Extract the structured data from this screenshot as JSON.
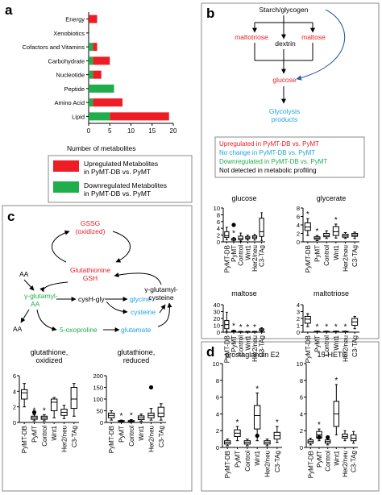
{
  "panels": {
    "a": {
      "letter": "a",
      "xlabel": "Number of metabolites",
      "legend": [
        {
          "label1": "Upregulated Metabolites",
          "label2": "in PyMT-DB vs. PyMT",
          "color": "#ee1c24"
        },
        {
          "label1": "Downregulated Metabolites",
          "label2": "in PyMT-DB vs. PyMT",
          "color": "#1fae4b"
        }
      ]
    },
    "b": {
      "letter": "b",
      "nodes": {
        "starch": "Starch/glycogen",
        "maltotriose": "maltotriose",
        "dextrin": "dextrin",
        "maltose": "maltose",
        "glucose": "glucose",
        "glycolysis1": "Glycolysis",
        "glycolysis2": "products"
      },
      "legend": [
        {
          "text": "Upregulated in PyMT-DB vs. PyMT",
          "color": "#ee1c24"
        },
        {
          "text": "No change in PyMT-DB vs. PyMT",
          "color": "#1ea5dc"
        },
        {
          "text": "Downregulated in PyMT-DB vs. PyMT",
          "color": "#1fae4b"
        },
        {
          "text": "Not detected in metabolic profiling",
          "color": "#000000"
        }
      ]
    },
    "c": {
      "letter": "c",
      "nodes": {
        "gssg1": "GSSG",
        "gssg2": "(oxidized)",
        "gsh1": "Glutathionine",
        "gsh2": "GSH",
        "aa1": "AA",
        "aa2": "AA",
        "ygaa1": "γ-glutamyl-",
        "ygaa2": "AA",
        "cysgly": "cysH-gly",
        "glycine": "glycine",
        "cysteine": "cysteine",
        "ygc1": "γ-glutamyl-",
        "ygc2": "cysteine",
        "oxoproline": "5-oxoproline",
        "glutamate": "glutamate"
      }
    },
    "d": {
      "letter": "d"
    }
  },
  "colors": {
    "red": "#ee1c24",
    "green": "#1fae4b",
    "blue": "#1ea5dc",
    "arrow_blue": "#2a5caa"
  },
  "chart_data": [
    {
      "type": "bar",
      "panel": "a",
      "categories": [
        "Energy",
        "Xenobiotics",
        "Cofactors and Vitamins",
        "Carbohydrate",
        "Nucleotide",
        "Peptide",
        "Amino Acid",
        "Lipid"
      ],
      "series": [
        {
          "name": "Downregulated Metabolites in PyMT-DB vs. PyMT",
          "values": [
            0,
            0,
            1,
            1,
            1,
            6,
            1,
            5
          ]
        },
        {
          "name": "Upregulated Metabolites in PyMT-DB vs. PyMT",
          "values": [
            2,
            0,
            1,
            4,
            2,
            0,
            7,
            14
          ]
        }
      ],
      "stacked": true,
      "orientation": "horizontal",
      "xlim": [
        0,
        20
      ],
      "xticks": [
        0,
        5,
        10,
        15,
        20
      ],
      "xlabel": "Number of metabolites"
    },
    {
      "type": "box",
      "panel": "b",
      "title": "glucose",
      "ylim": [
        0,
        10
      ],
      "yticks": [
        0,
        2,
        4,
        6,
        8,
        10
      ],
      "categories": [
        "PyMT-DB",
        "PyMT",
        "Control",
        "Wnt1",
        "Her2/neu",
        "C3-TAg"
      ],
      "boxes": [
        [
          0.6,
          1.3,
          1.8,
          3.0,
          4.3
        ],
        [
          0.3,
          0.5,
          0.8,
          1.0,
          1.3
        ],
        [
          0.2,
          0.6,
          1.0,
          1.7,
          2.6
        ],
        [
          0.5,
          0.9,
          1.2,
          1.6,
          2.0
        ],
        [
          0.5,
          1.0,
          1.4,
          1.8,
          2.2
        ],
        [
          0.4,
          1.6,
          3.0,
          7.0,
          8.6
        ]
      ],
      "markers": [
        {
          "index": 1,
          "type": "star"
        }
      ],
      "outliers": [
        {
          "index": 1,
          "value": 5.0
        }
      ]
    },
    {
      "type": "box",
      "panel": "b",
      "title": "glycerate",
      "ylim": [
        0,
        8
      ],
      "yticks": [
        0,
        2,
        4,
        6,
        8
      ],
      "categories": [
        "PyMT-DB",
        "PyMT",
        "Control",
        "Wnt1",
        "Her2/neu",
        "C3-TAg"
      ],
      "boxes": [
        [
          1.5,
          2.7,
          3.5,
          4.5,
          5.5
        ],
        [
          0.3,
          0.6,
          0.9,
          1.2,
          1.5
        ],
        [
          0.8,
          1.2,
          1.5,
          2.0,
          2.6
        ],
        [
          0.9,
          1.5,
          2.4,
          3.6,
          4.2
        ],
        [
          0.8,
          1.1,
          1.4,
          1.8,
          2.2
        ],
        [
          0.8,
          1.3,
          1.6,
          2.0,
          2.3
        ]
      ],
      "markers": [
        {
          "index": 0,
          "type": "star"
        },
        {
          "index": 1,
          "type": "star"
        },
        {
          "index": 3,
          "type": "star"
        }
      ]
    },
    {
      "type": "box",
      "panel": "b",
      "title": "maltose",
      "ylim": [
        0,
        40
      ],
      "yticks": [
        0,
        10,
        20,
        30,
        40
      ],
      "categories": [
        "PyMT-DB",
        "PyMT",
        "Control",
        "Wnt1",
        "Her2/neu",
        "C3-TAg"
      ],
      "boxes": [
        [
          1,
          5,
          11,
          17,
          29
        ],
        [
          0.3,
          0.8,
          1.5,
          2.0,
          3.0
        ],
        [
          0.2,
          0.5,
          0.8,
          1.0,
          1.2
        ],
        [
          0.2,
          0.5,
          0.8,
          1.0,
          1.2
        ],
        [
          0.2,
          0.5,
          0.8,
          1.0,
          1.2
        ],
        [
          1,
          2,
          3.5,
          5,
          6.5
        ]
      ],
      "markers": [
        {
          "index": 1,
          "type": "star"
        },
        {
          "index": 2,
          "type": "star"
        },
        {
          "index": 3,
          "type": "star"
        },
        {
          "index": 4,
          "type": "star"
        }
      ]
    },
    {
      "type": "box",
      "panel": "b",
      "title": "maltotriose",
      "ylim": [
        0,
        4
      ],
      "yticks": [
        0,
        1,
        2,
        3,
        4
      ],
      "categories": [
        "PyMT-DB",
        "PyMT",
        "Control",
        "Wnt1",
        "Her2/neu",
        "C3-TAg"
      ],
      "boxes": [
        [
          0.8,
          1.3,
          1.9,
          2.3,
          2.7
        ],
        [
          0.02,
          0.05,
          0.08,
          0.12,
          0.15
        ],
        [
          0.02,
          0.05,
          0.08,
          0.12,
          0.15
        ],
        [
          0.02,
          0.05,
          0.08,
          0.12,
          0.15
        ],
        [
          0.02,
          0.05,
          0.08,
          0.12,
          0.15
        ],
        [
          0.5,
          1.0,
          1.5,
          2.0,
          2.3
        ]
      ],
      "markers": [
        {
          "index": 1,
          "type": "star"
        },
        {
          "index": 2,
          "type": "star"
        },
        {
          "index": 3,
          "type": "star"
        },
        {
          "index": 4,
          "type": "star"
        }
      ]
    },
    {
      "type": "box",
      "panel": "c",
      "title": "glutathione,",
      "title2": "oxidized",
      "ylim": [
        0,
        6
      ],
      "yticks": [
        0,
        2,
        4,
        6
      ],
      "categories": [
        "PyMT-DB",
        "PyMT",
        "Control",
        "Wnt1",
        "Her2/neu",
        "C3-TAg"
      ],
      "boxes": [
        [
          2.0,
          3.0,
          3.8,
          4.2,
          5.0
        ],
        [
          0.2,
          0.4,
          0.6,
          0.8,
          1.0
        ],
        [
          0.2,
          0.4,
          0.6,
          0.8,
          1.0
        ],
        [
          0.6,
          1.5,
          2.6,
          3.0,
          3.2
        ],
        [
          0.5,
          0.9,
          1.3,
          1.7,
          2.2
        ],
        [
          0.8,
          1.8,
          3.0,
          4.5,
          5.0
        ]
      ],
      "markers": [
        {
          "index": 1,
          "type": "star"
        },
        {
          "index": 2,
          "type": "star"
        }
      ],
      "outliers": [
        {
          "index": 1,
          "value": 1.3
        }
      ]
    },
    {
      "type": "box",
      "panel": "c",
      "title": "glutathione,",
      "title2": "reduced",
      "ylim": [
        0,
        200
      ],
      "yticks": [
        0,
        50,
        100,
        150,
        200
      ],
      "categories": [
        "PyMT-DB",
        "PyMT",
        "Control",
        "Wnt1",
        "Her2/neu",
        "C3-TAg"
      ],
      "boxes": [
        [
          10,
          20,
          30,
          40,
          50
        ],
        [
          2,
          4,
          6,
          8,
          10
        ],
        [
          2,
          4,
          6,
          8,
          12
        ],
        [
          5,
          12,
          20,
          28,
          36
        ],
        [
          10,
          20,
          30,
          40,
          60
        ],
        [
          10,
          25,
          40,
          65,
          80
        ]
      ],
      "markers": [
        {
          "index": 1,
          "type": "star"
        },
        {
          "index": 2,
          "type": "star"
        }
      ],
      "outliers": [
        {
          "index": 4,
          "value": 150
        }
      ]
    },
    {
      "type": "box",
      "panel": "d",
      "title": "prostaglandin E2",
      "ylim": [
        0,
        10
      ],
      "yticks": [
        0,
        2,
        4,
        6,
        8,
        10
      ],
      "categories": [
        "PyMT-DB",
        "PyMT",
        "Control",
        "Wnt1",
        "Her2/neu",
        "C3-TAg"
      ],
      "boxes": [
        [
          0.2,
          0.4,
          0.6,
          0.8,
          1.0
        ],
        [
          0.8,
          1.3,
          1.7,
          2.1,
          2.5
        ],
        [
          0.2,
          0.4,
          0.6,
          0.8,
          1.0
        ],
        [
          0.8,
          2.2,
          3.8,
          5.0,
          6.5
        ],
        [
          0.2,
          0.4,
          0.6,
          0.8,
          1.0
        ],
        [
          0.6,
          1.0,
          1.4,
          1.8,
          2.5
        ]
      ],
      "markers": [
        {
          "index": 1,
          "type": "star"
        },
        {
          "index": 3,
          "type": "star"
        },
        {
          "index": 5,
          "type": "star"
        }
      ],
      "outliers": [
        {
          "index": 3,
          "value": 1.4
        }
      ]
    },
    {
      "type": "box",
      "panel": "d",
      "title": "15-HETE",
      "ylim": [
        0,
        10
      ],
      "yticks": [
        0,
        2,
        4,
        6,
        8,
        10
      ],
      "categories": [
        "PyMT-DB",
        "PyMT",
        "Control",
        "Wnt1",
        "Her2/neu",
        "C3-TAg"
      ],
      "boxes": [
        [
          0.3,
          0.5,
          0.7,
          0.9,
          1.1
        ],
        [
          0.8,
          1.1,
          1.5,
          1.9,
          2.2
        ],
        [
          0.3,
          0.5,
          0.7,
          0.9,
          1.1
        ],
        [
          1.5,
          2.5,
          4.0,
          5.5,
          7.5
        ],
        [
          0.8,
          1.1,
          1.3,
          1.6,
          2.0
        ],
        [
          0.5,
          0.8,
          1.1,
          1.5,
          1.9
        ]
      ],
      "markers": [
        {
          "index": 1,
          "type": "star"
        },
        {
          "index": 3,
          "type": "star"
        }
      ],
      "outliers": [
        {
          "index": 1,
          "value": 1.2
        },
        {
          "index": 2,
          "value": 1.2
        }
      ]
    }
  ]
}
